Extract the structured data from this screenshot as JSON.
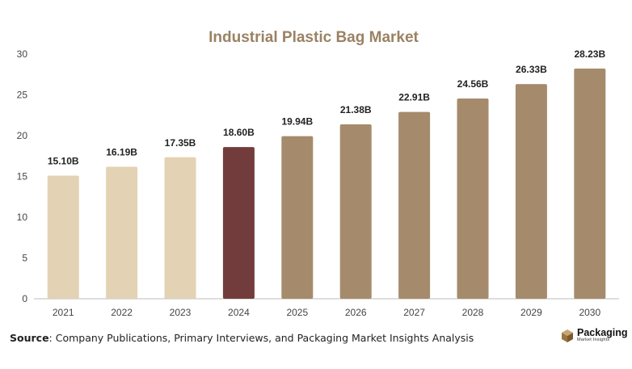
{
  "chart_data": {
    "type": "bar",
    "title": "Industrial Plastic Bag Market",
    "categories": [
      "2021",
      "2022",
      "2023",
      "2024",
      "2025",
      "2026",
      "2027",
      "2028",
      "2029",
      "2030"
    ],
    "values": [
      15.1,
      16.19,
      17.35,
      18.6,
      19.94,
      21.38,
      22.91,
      24.56,
      26.33,
      28.23
    ],
    "data_labels": [
      "15.10B",
      "16.19B",
      "17.35B",
      "18.60B",
      "19.94B",
      "21.38B",
      "22.91B",
      "24.56B",
      "26.33B",
      "28.23B"
    ],
    "ylim": [
      0,
      30
    ],
    "yticks": [
      0,
      5,
      10,
      15,
      20,
      25,
      30
    ],
    "grid": false,
    "colors": {
      "historical": "#e3d2b3",
      "current": "#733c3c",
      "forecast": "#a58b6c",
      "title": "#9a8263"
    },
    "bar_color_groups": [
      "historical",
      "historical",
      "historical",
      "current",
      "forecast",
      "forecast",
      "forecast",
      "forecast",
      "forecast",
      "forecast"
    ]
  },
  "footer": {
    "source_label": "Source",
    "source_text": ": Company Publications, Primary Interviews, and Packaging Market Insights Analysis"
  },
  "logo": {
    "icon": "cube-logo-icon",
    "name": "Packaging",
    "sub": "Market Insights"
  }
}
